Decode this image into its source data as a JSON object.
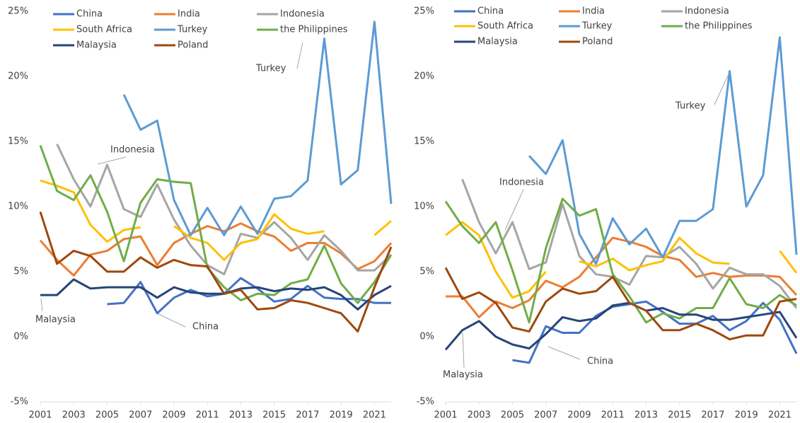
{
  "chart_data": [
    {
      "type": "line",
      "x": [
        2001,
        2002,
        2003,
        2004,
        2005,
        2006,
        2007,
        2008,
        2009,
        2010,
        2011,
        2012,
        2013,
        2014,
        2015,
        2016,
        2017,
        2018,
        2019,
        2020,
        2021,
        2022
      ],
      "xlim": [
        2001,
        2022
      ],
      "xticks": [
        2001,
        2003,
        2005,
        2007,
        2009,
        2011,
        2013,
        2015,
        2017,
        2019,
        2021
      ],
      "ylim": [
        -5,
        25
      ],
      "yticks": [
        {
          "value": -5,
          "label": "-5%"
        },
        {
          "value": 0,
          "label": "0%"
        },
        {
          "value": 5,
          "label": "5%"
        },
        {
          "value": 10,
          "label": "10%"
        },
        {
          "value": 15,
          "label": "15%"
        },
        {
          "value": 20,
          "label": "20%"
        },
        {
          "value": 25,
          "label": "25%"
        }
      ],
      "grid": false,
      "legend": "top",
      "series": [
        {
          "name": "China",
          "color": "#4472c4",
          "values": [
            null,
            null,
            null,
            null,
            2.5,
            2.6,
            4.2,
            1.8,
            3.0,
            3.6,
            3.1,
            3.3,
            4.5,
            3.7,
            2.7,
            2.9,
            3.9,
            3.0,
            2.9,
            2.9,
            2.6,
            2.6
          ]
        },
        {
          "name": "India",
          "color": "#ed7d31",
          "values": [
            7.4,
            5.9,
            4.7,
            6.3,
            6.6,
            7.5,
            7.7,
            5.5,
            7.2,
            7.9,
            8.5,
            8.1,
            8.7,
            8.1,
            7.7,
            6.6,
            7.2,
            7.2,
            6.4,
            5.2,
            5.8,
            7.2
          ]
        },
        {
          "name": "Indonesia",
          "color": "#a5a5a5",
          "values": [
            null,
            14.8,
            12.1,
            10.0,
            13.2,
            9.8,
            9.2,
            11.7,
            9.0,
            7.0,
            5.5,
            4.8,
            7.9,
            7.6,
            8.8,
            7.6,
            5.9,
            7.8,
            6.6,
            5.1,
            5.1,
            6.3
          ]
        },
        {
          "name": "South Africa",
          "color": "#ffc000",
          "values": [
            12.0,
            11.6,
            11.1,
            8.6,
            7.3,
            8.2,
            8.4,
            null,
            8.5,
            7.6,
            7.2,
            5.9,
            7.2,
            7.5,
            9.4,
            8.3,
            7.9,
            8.1,
            null,
            null,
            7.8,
            8.9
          ]
        },
        {
          "name": "Turkey",
          "color": "#5b9bd5",
          "values": [
            null,
            null,
            null,
            null,
            null,
            18.6,
            15.9,
            16.6,
            10.5,
            7.8,
            9.9,
            7.8,
            10.0,
            7.9,
            10.6,
            10.8,
            12.0,
            22.9,
            11.7,
            12.8,
            24.2,
            10.2
          ]
        },
        {
          "name": "the Philippines",
          "color": "#70ad47",
          "values": [
            14.7,
            11.2,
            10.5,
            12.4,
            9.6,
            5.8,
            10.3,
            12.1,
            11.9,
            11.8,
            5.3,
            3.8,
            2.8,
            3.3,
            3.2,
            4.1,
            4.4,
            7.0,
            4.1,
            2.6,
            4.2,
            6.3
          ]
        },
        {
          "name": "Malaysia",
          "color": "#264478",
          "values": [
            3.2,
            3.2,
            4.4,
            3.7,
            3.8,
            3.8,
            3.8,
            3.0,
            3.8,
            3.4,
            3.3,
            3.3,
            3.7,
            3.8,
            3.5,
            3.7,
            3.6,
            3.8,
            3.2,
            2.1,
            3.2,
            3.9
          ]
        },
        {
          "name": "Poland",
          "color": "#9e480e",
          "values": [
            9.6,
            5.6,
            6.6,
            6.2,
            5.0,
            5.0,
            6.1,
            5.3,
            5.9,
            5.5,
            5.4,
            3.3,
            3.6,
            2.1,
            2.2,
            2.8,
            2.6,
            2.2,
            1.8,
            0.4,
            3.8,
            6.9
          ]
        }
      ],
      "annotations": [
        "Turkey",
        "Indonesia",
        "Malaysia",
        "China"
      ]
    },
    {
      "type": "line",
      "x": [
        2001,
        2002,
        2003,
        2004,
        2005,
        2006,
        2007,
        2008,
        2009,
        2010,
        2011,
        2012,
        2013,
        2014,
        2015,
        2016,
        2017,
        2018,
        2019,
        2020,
        2021,
        2022
      ],
      "xlim": [
        2001,
        2022
      ],
      "xticks": [
        2001,
        2003,
        2005,
        2007,
        2009,
        2011,
        2013,
        2015,
        2017,
        2019,
        2021
      ],
      "ylim": [
        -5,
        25
      ],
      "yticks": [
        {
          "value": -5,
          "label": "-5%"
        },
        {
          "value": 0,
          "label": "0%"
        },
        {
          "value": 5,
          "label": "5%"
        },
        {
          "value": 10,
          "label": "10%"
        },
        {
          "value": 15,
          "label": "15%"
        },
        {
          "value": 20,
          "label": "20%"
        },
        {
          "value": 25,
          "label": "25%"
        }
      ],
      "grid": false,
      "legend": "top",
      "series": [
        {
          "name": "China",
          "color": "#4472c4",
          "values": [
            null,
            null,
            null,
            null,
            -1.8,
            -2.0,
            0.8,
            0.3,
            0.3,
            1.6,
            2.3,
            2.5,
            2.7,
            1.9,
            1.0,
            1.0,
            1.6,
            0.5,
            1.2,
            2.6,
            1.3,
            -1.3
          ]
        },
        {
          "name": "India",
          "color": "#ed7d31",
          "values": [
            3.1,
            3.1,
            1.5,
            2.7,
            2.2,
            2.8,
            4.3,
            3.8,
            4.6,
            6.1,
            7.6,
            7.3,
            6.9,
            6.2,
            5.9,
            4.6,
            4.9,
            4.6,
            4.7,
            4.7,
            4.6,
            3.2
          ]
        },
        {
          "name": "Indonesia",
          "color": "#a5a5a5",
          "values": [
            null,
            12.1,
            8.8,
            6.4,
            8.8,
            5.2,
            5.7,
            10.2,
            6.2,
            4.8,
            4.6,
            4.0,
            6.2,
            6.1,
            6.9,
            5.6,
            3.7,
            5.3,
            4.8,
            4.8,
            3.9,
            2.2
          ]
        },
        {
          "name": "South Africa",
          "color": "#ffc000",
          "values": [
            7.8,
            8.8,
            7.8,
            5.0,
            3.0,
            3.5,
            5.0,
            null,
            5.8,
            5.4,
            6.0,
            5.1,
            5.5,
            5.8,
            7.6,
            6.4,
            5.7,
            5.6,
            null,
            null,
            6.6,
            4.9
          ]
        },
        {
          "name": "Turkey",
          "color": "#5b9bd5",
          "values": [
            null,
            null,
            null,
            null,
            null,
            13.9,
            12.5,
            15.1,
            7.9,
            5.6,
            9.1,
            7.1,
            8.3,
            6.1,
            8.9,
            8.9,
            9.8,
            20.4,
            10.0,
            12.4,
            23.0,
            6.3
          ]
        },
        {
          "name": "the Philippines",
          "color": "#70ad47",
          "values": [
            10.4,
            8.5,
            7.2,
            8.8,
            5.1,
            1.1,
            6.8,
            10.6,
            9.3,
            9.8,
            4.8,
            3.1,
            1.1,
            1.8,
            1.4,
            2.2,
            2.2,
            4.5,
            2.5,
            2.2,
            3.2,
            2.4
          ]
        },
        {
          "name": "Malaysia",
          "color": "#264478",
          "values": [
            -1.0,
            0.5,
            1.2,
            0.0,
            -0.6,
            -0.9,
            0.2,
            1.5,
            1.2,
            1.4,
            2.4,
            2.6,
            2.0,
            2.2,
            1.7,
            1.7,
            1.3,
            1.3,
            1.5,
            1.7,
            1.9,
            -0.1
          ]
        },
        {
          "name": "Poland",
          "color": "#9e480e",
          "values": [
            5.3,
            2.9,
            3.4,
            2.6,
            0.7,
            0.4,
            2.7,
            3.7,
            3.3,
            3.5,
            4.6,
            2.6,
            2.0,
            0.5,
            0.5,
            1.0,
            0.5,
            -0.2,
            0.1,
            0.1,
            2.7,
            2.9
          ]
        }
      ],
      "annotations": [
        "Turkey",
        "Indonesia",
        "Malaysia",
        "China"
      ]
    }
  ]
}
